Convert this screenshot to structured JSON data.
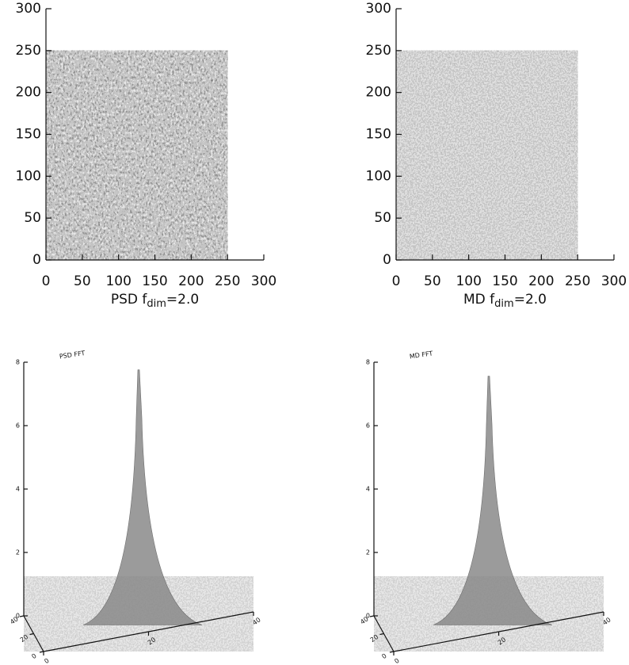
{
  "chart_data": [
    {
      "type": "image",
      "xlabel": [
        "PSD f",
        "dim",
        "=2.0"
      ],
      "xlim": [
        0,
        300
      ],
      "ylim": [
        0,
        300
      ],
      "xticks": [
        0,
        50,
        100,
        150,
        200,
        250,
        300
      ],
      "yticks": [
        0,
        50,
        100,
        150,
        200,
        250,
        300
      ],
      "extent": [
        0,
        250
      ]
    },
    {
      "type": "image",
      "xlabel": [
        "MD f",
        "dim",
        "=2.0"
      ],
      "xlim": [
        0,
        300
      ],
      "ylim": [
        0,
        300
      ],
      "xticks": [
        0,
        50,
        100,
        150,
        200,
        250,
        300
      ],
      "yticks": [
        0,
        50,
        100,
        150,
        200,
        250,
        300
      ],
      "extent": [
        0,
        250
      ]
    },
    {
      "type": "surface",
      "title": "PSD FFT",
      "zlim": [
        0,
        8
      ],
      "zticks": [
        0,
        2,
        4,
        6,
        8
      ],
      "xlim": [
        0,
        40
      ],
      "xticks": [
        0,
        20,
        40
      ],
      "ylim": [
        0,
        40
      ],
      "yticks": [
        0,
        20,
        40
      ],
      "peak": 7.7
    },
    {
      "type": "surface",
      "title": "MD FFT",
      "zlim": [
        0,
        8
      ],
      "zticks": [
        0,
        2,
        4,
        6,
        8
      ],
      "xlim": [
        0,
        40
      ],
      "xticks": [
        0,
        20,
        40
      ],
      "ylim": [
        0,
        40
      ],
      "yticks": [
        0,
        20,
        40
      ],
      "peak": 7.5
    }
  ]
}
